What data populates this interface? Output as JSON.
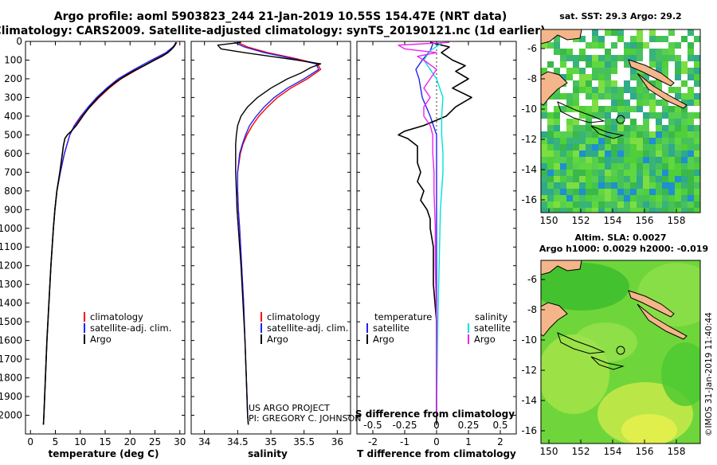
{
  "title_line1": "Argo profile: aoml 5903823_244 21-Jan-2019 10.55S 154.47E (NRT data)",
  "title_line2": "Climatology: CARS2009. Satellite-adjusted climatology: synTS_20190121.nc (1d earlier)",
  "project_line1": "US ARGO PROJECT",
  "project_line2": "PI: GREGORY C. JOHNSON",
  "side_label": "©IMOS 31-Jan-2019 11:40:44",
  "colors": {
    "climatology": "#ff0000",
    "satellite": "#2222ee",
    "argo": "#000000",
    "sat_salinity": "#00e0e0",
    "argo_salinity": "#ee22ee",
    "land": "#f5b58a"
  },
  "map1": {
    "title": "sat. SST: 29.3 Argo: 29.2",
    "yticks": [
      "-6",
      "-8",
      "-10",
      "-12",
      "-14",
      "-16"
    ],
    "xticks": [
      "150",
      "152",
      "154",
      "156",
      "158"
    ]
  },
  "map2": {
    "title1": "Altim. SLA: 0.0027",
    "title2": "Argo h1000: 0.0029 h2000: -0.019",
    "yticks": [
      "-6",
      "-8",
      "-10",
      "-12",
      "-14",
      "-16"
    ],
    "xticks": [
      "150",
      "152",
      "154",
      "156",
      "158"
    ]
  },
  "chart_data": [
    {
      "type": "line",
      "xlabel": "temperature (deg C)",
      "ylabel": "",
      "xlim": [
        -1,
        31
      ],
      "ylim": [
        2100,
        0
      ],
      "xticks": [
        0,
        5,
        10,
        15,
        20,
        25,
        30
      ],
      "yticks": [
        0,
        100,
        200,
        300,
        400,
        500,
        600,
        700,
        800,
        900,
        1000,
        1100,
        1200,
        1300,
        1400,
        1500,
        1600,
        1700,
        1800,
        1900,
        2000
      ],
      "legend": [
        "climatology",
        "satellite-adj. clim.",
        "Argo"
      ],
      "series": [
        {
          "name": "climatology",
          "depth": [
            5,
            30,
            60,
            100,
            150,
            200,
            250,
            300,
            350,
            400,
            450,
            500,
            600,
            700,
            800,
            900,
            1000,
            1200,
            1400,
            1600,
            1800,
            2000,
            2050
          ],
          "values": [
            29.4,
            28.8,
            27.5,
            24.8,
            21.5,
            18.2,
            15.8,
            13.8,
            12.0,
            10.3,
            8.9,
            7.9,
            6.8,
            6.0,
            5.3,
            4.9,
            4.6,
            4.1,
            3.7,
            3.3,
            3.0,
            2.7,
            2.6
          ]
        },
        {
          "name": "satellite-adj. clim.",
          "depth": [
            5,
            30,
            60,
            100,
            150,
            200,
            250,
            300,
            350,
            400,
            450,
            500,
            600,
            700,
            800,
            900,
            1000,
            1200,
            1400,
            1600,
            1800,
            2000,
            2050
          ],
          "values": [
            29.3,
            28.6,
            27.2,
            24.3,
            20.8,
            17.6,
            15.3,
            13.3,
            11.6,
            10.1,
            8.8,
            7.9,
            6.8,
            6.0,
            5.3,
            4.9,
            4.6,
            4.1,
            3.7,
            3.3,
            3.0,
            2.7,
            2.6
          ]
        },
        {
          "name": "Argo",
          "depth": [
            5,
            20,
            40,
            60,
            80,
            100,
            130,
            160,
            190,
            220,
            260,
            300,
            350,
            400,
            450,
            480,
            500,
            520,
            560,
            600,
            700,
            800,
            900,
            1000,
            1200,
            1400,
            1600,
            1800,
            2000,
            2050
          ],
          "values": [
            29.2,
            29.0,
            28.4,
            27.6,
            26.4,
            24.9,
            22.8,
            20.6,
            18.7,
            17.0,
            15.2,
            13.6,
            11.9,
            10.5,
            9.2,
            8.2,
            7.4,
            6.9,
            6.6,
            6.4,
            5.9,
            5.3,
            4.9,
            4.6,
            4.1,
            3.7,
            3.3,
            3.0,
            2.7,
            2.6
          ]
        }
      ]
    },
    {
      "type": "line",
      "xlabel": "salinity",
      "ylabel": "",
      "xlim": [
        33.8,
        36.2
      ],
      "ylim": [
        2100,
        0
      ],
      "xticks": [
        34,
        34.5,
        35,
        35.5,
        36
      ],
      "legend": [
        "climatology",
        "satellite-adj. clim.",
        "Argo"
      ],
      "series": [
        {
          "name": "climatology",
          "depth": [
            5,
            30,
            60,
            90,
            120,
            150,
            200,
            250,
            300,
            350,
            400,
            450,
            500,
            550,
            600,
            700,
            800,
            900,
            1000,
            1200,
            1400,
            1600,
            1800,
            2000,
            2050
          ],
          "values": [
            34.5,
            34.65,
            34.95,
            35.35,
            35.7,
            35.75,
            35.55,
            35.3,
            35.1,
            34.95,
            34.82,
            34.72,
            34.64,
            34.58,
            34.54,
            34.5,
            34.5,
            34.51,
            34.53,
            34.56,
            34.59,
            34.61,
            34.63,
            34.65,
            34.66
          ]
        },
        {
          "name": "satellite-adj. clim.",
          "depth": [
            5,
            30,
            60,
            90,
            120,
            150,
            200,
            250,
            300,
            350,
            400,
            450,
            500,
            550,
            600,
            700,
            800,
            900,
            1000,
            1200,
            1400,
            1600,
            1800,
            2000,
            2050
          ],
          "values": [
            34.45,
            34.6,
            34.9,
            35.3,
            35.68,
            35.72,
            35.5,
            35.25,
            35.05,
            34.9,
            34.78,
            34.68,
            34.62,
            34.57,
            34.53,
            34.5,
            34.5,
            34.51,
            34.53,
            34.56,
            34.59,
            34.61,
            34.63,
            34.65,
            34.66
          ]
        },
        {
          "name": "Argo",
          "depth": [
            5,
            20,
            40,
            60,
            80,
            100,
            120,
            140,
            170,
            200,
            250,
            300,
            350,
            400,
            450,
            500,
            550,
            600,
            700,
            800,
            900,
            1000,
            1200,
            1400,
            1600,
            1800,
            2000,
            2050
          ],
          "values": [
            34.55,
            34.2,
            34.25,
            34.6,
            35.0,
            35.4,
            35.75,
            35.6,
            35.45,
            35.25,
            35.0,
            34.8,
            34.65,
            34.55,
            34.5,
            34.48,
            34.47,
            34.47,
            34.47,
            34.48,
            34.49,
            34.51,
            34.55,
            34.58,
            34.61,
            34.63,
            34.65,
            34.66
          ]
        }
      ]
    },
    {
      "type": "line",
      "xlabel": "T difference from climatology",
      "xlabel_top": "S difference from climatology",
      "ylabel": "",
      "xlim": [
        -2.5,
        2.5
      ],
      "ylim": [
        2100,
        0
      ],
      "xticks": [
        -2,
        -1,
        0,
        1,
        2
      ],
      "xticks_top": [
        "-0.5",
        "-0.25",
        "0",
        "0.25",
        "0.5"
      ],
      "legend_left_title": "temperature",
      "legend_right_title": "salinity",
      "legend": [
        "satellite",
        "Argo",
        "satellite",
        "Argo"
      ],
      "series": [
        {
          "name": "temperature satellite",
          "depth": [
            5,
            50,
            100,
            150,
            200,
            300,
            400,
            500,
            700,
            1000,
            1500,
            2000
          ],
          "values": [
            -0.1,
            -0.2,
            -0.45,
            -0.65,
            -0.55,
            -0.45,
            -0.2,
            0.0,
            0.0,
            0.0,
            0.0,
            0.0
          ]
        },
        {
          "name": "temperature Argo",
          "depth": [
            5,
            30,
            60,
            100,
            130,
            160,
            200,
            250,
            300,
            350,
            400,
            450,
            480,
            500,
            520,
            560,
            600,
            650,
            700,
            750,
            800,
            850,
            900,
            950,
            1000,
            1100,
            1200,
            1300,
            1400,
            1500,
            1600,
            1700,
            1800,
            1900,
            2000,
            2050
          ],
          "values": [
            -0.2,
            0.4,
            0.15,
            0.5,
            0.9,
            0.6,
            1.0,
            0.5,
            1.1,
            0.6,
            0.3,
            -0.4,
            -1.0,
            -1.2,
            -0.9,
            -0.6,
            -0.6,
            -0.6,
            -0.5,
            -0.6,
            -0.4,
            -0.5,
            -0.3,
            -0.2,
            -0.2,
            -0.1,
            -0.1,
            -0.1,
            -0.05,
            0.0,
            0.0,
            0.0,
            0.0,
            0.0,
            0.0,
            0.0
          ]
        },
        {
          "name": "salinity satellite",
          "depth": [
            5,
            50,
            100,
            150,
            200,
            300,
            400,
            500,
            600,
            700,
            900,
            1200,
            1500,
            2000
          ],
          "values": [
            0.05,
            -0.05,
            -0.1,
            -0.05,
            0.0,
            0.05,
            0.04,
            0.04,
            0.05,
            0.05,
            0.03,
            0.02,
            0.01,
            0.0
          ]
        },
        {
          "name": "salinity Argo",
          "depth": [
            5,
            20,
            40,
            60,
            80,
            100,
            150,
            200,
            250,
            300,
            350,
            400,
            450,
            500,
            600,
            700,
            800,
            1000,
            1200,
            1500,
            2000
          ],
          "values": [
            0.1,
            -0.3,
            -0.25,
            0.0,
            -0.15,
            -0.1,
            0.0,
            -0.05,
            -0.1,
            -0.05,
            -0.1,
            -0.1,
            -0.05,
            -0.03,
            -0.03,
            -0.02,
            -0.02,
            -0.01,
            -0.01,
            0.0,
            0.0
          ]
        }
      ]
    }
  ]
}
